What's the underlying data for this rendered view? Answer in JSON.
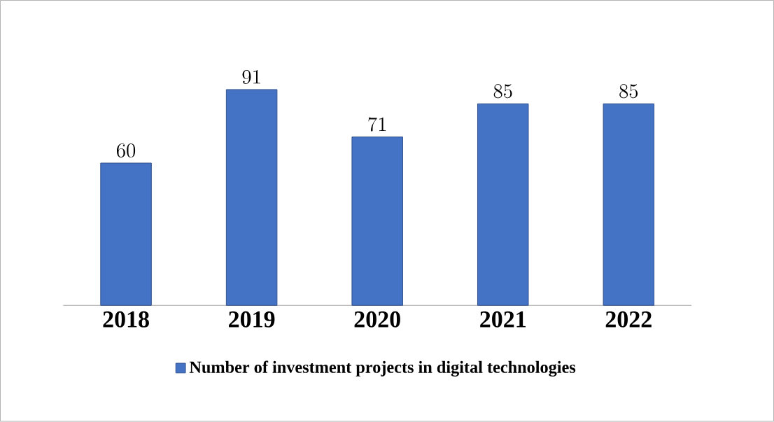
{
  "chart_data": {
    "type": "bar",
    "categories": [
      "2018",
      "2019",
      "2020",
      "2021",
      "2022"
    ],
    "series": [
      {
        "name": "Number of investment projects in digital technologies",
        "color": "#4472c4",
        "values": [
          60,
          91,
          71,
          85,
          85
        ]
      }
    ],
    "data_labels": true,
    "legend": "bottom"
  }
}
